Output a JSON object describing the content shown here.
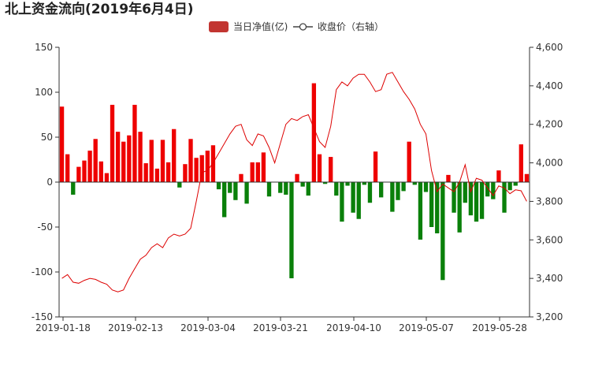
{
  "chart_data": {
    "type": "bar",
    "title": "北上资金流向(2019年6月4日)",
    "x_tick_labels": [
      "2019-01-18",
      "2019-02-13",
      "2019-03-04",
      "2019-03-21",
      "2019-04-10",
      "2019-05-07",
      "2019-05-28"
    ],
    "left_axis": {
      "ylim": [
        -150,
        150
      ],
      "ticks": [
        "150",
        "100",
        "50",
        "0",
        "-50",
        "-100",
        "-150"
      ]
    },
    "right_axis": {
      "ylim": [
        3200,
        4600
      ],
      "ticks": [
        "4,600",
        "4,400",
        "4,200",
        "4,000",
        "3,800",
        "3,600",
        "3,400",
        "3,200"
      ]
    },
    "legend": {
      "position": "top-center",
      "bar_label": "当日净值(亿)",
      "line_label": "收盘价（右轴）"
    },
    "colors": {
      "positive": "#ee0000",
      "negative": "#0a800a",
      "line": "#dd0000",
      "legend_bar": "#c23531"
    },
    "series": [
      {
        "name": "当日净值(亿)",
        "type": "bar",
        "values": [
          84,
          31,
          -14,
          17,
          24,
          35,
          48,
          23,
          10,
          86,
          56,
          45,
          52,
          86,
          56,
          21,
          47,
          15,
          47,
          22,
          59,
          -6,
          20,
          48,
          27,
          30,
          35,
          41,
          -8,
          -39,
          -12,
          -20,
          9,
          -24,
          22,
          22,
          33,
          -16,
          0,
          -12,
          -14,
          -107,
          9,
          -5,
          -15,
          110,
          31,
          -2,
          28,
          -15,
          -44,
          -4,
          -34,
          -41,
          -3,
          -23,
          34,
          -17,
          0,
          -33,
          -20,
          -10,
          45,
          -3,
          -64,
          -11,
          -50,
          -57,
          -109,
          8,
          -34,
          -56,
          -23,
          -37,
          -44,
          -41,
          -16,
          -19,
          13,
          -34,
          -9,
          -4,
          42,
          9
        ]
      },
      {
        "name": "收盘价（右轴）",
        "type": "line",
        "axis": "right",
        "values": [
          3400,
          3420,
          3380,
          3375,
          3390,
          3400,
          3395,
          3380,
          3370,
          3340,
          3330,
          3340,
          3400,
          3450,
          3500,
          3520,
          3560,
          3580,
          3560,
          3610,
          3630,
          3620,
          3630,
          3660,
          3800,
          3950,
          3960,
          4000,
          4050,
          4100,
          4150,
          4190,
          4200,
          4120,
          4090,
          4150,
          4140,
          4080,
          4000,
          4100,
          4200,
          4230,
          4220,
          4240,
          4250,
          4180,
          4110,
          4080,
          4190,
          4380,
          4420,
          4400,
          4440,
          4460,
          4460,
          4420,
          4370,
          4380,
          4460,
          4470,
          4420,
          4370,
          4330,
          4280,
          4200,
          4150,
          3960,
          3850,
          3890,
          3870,
          3850,
          3900,
          3990,
          3850,
          3920,
          3910,
          3870,
          3830,
          3880,
          3870,
          3840,
          3860,
          3855,
          3800
        ]
      }
    ]
  }
}
